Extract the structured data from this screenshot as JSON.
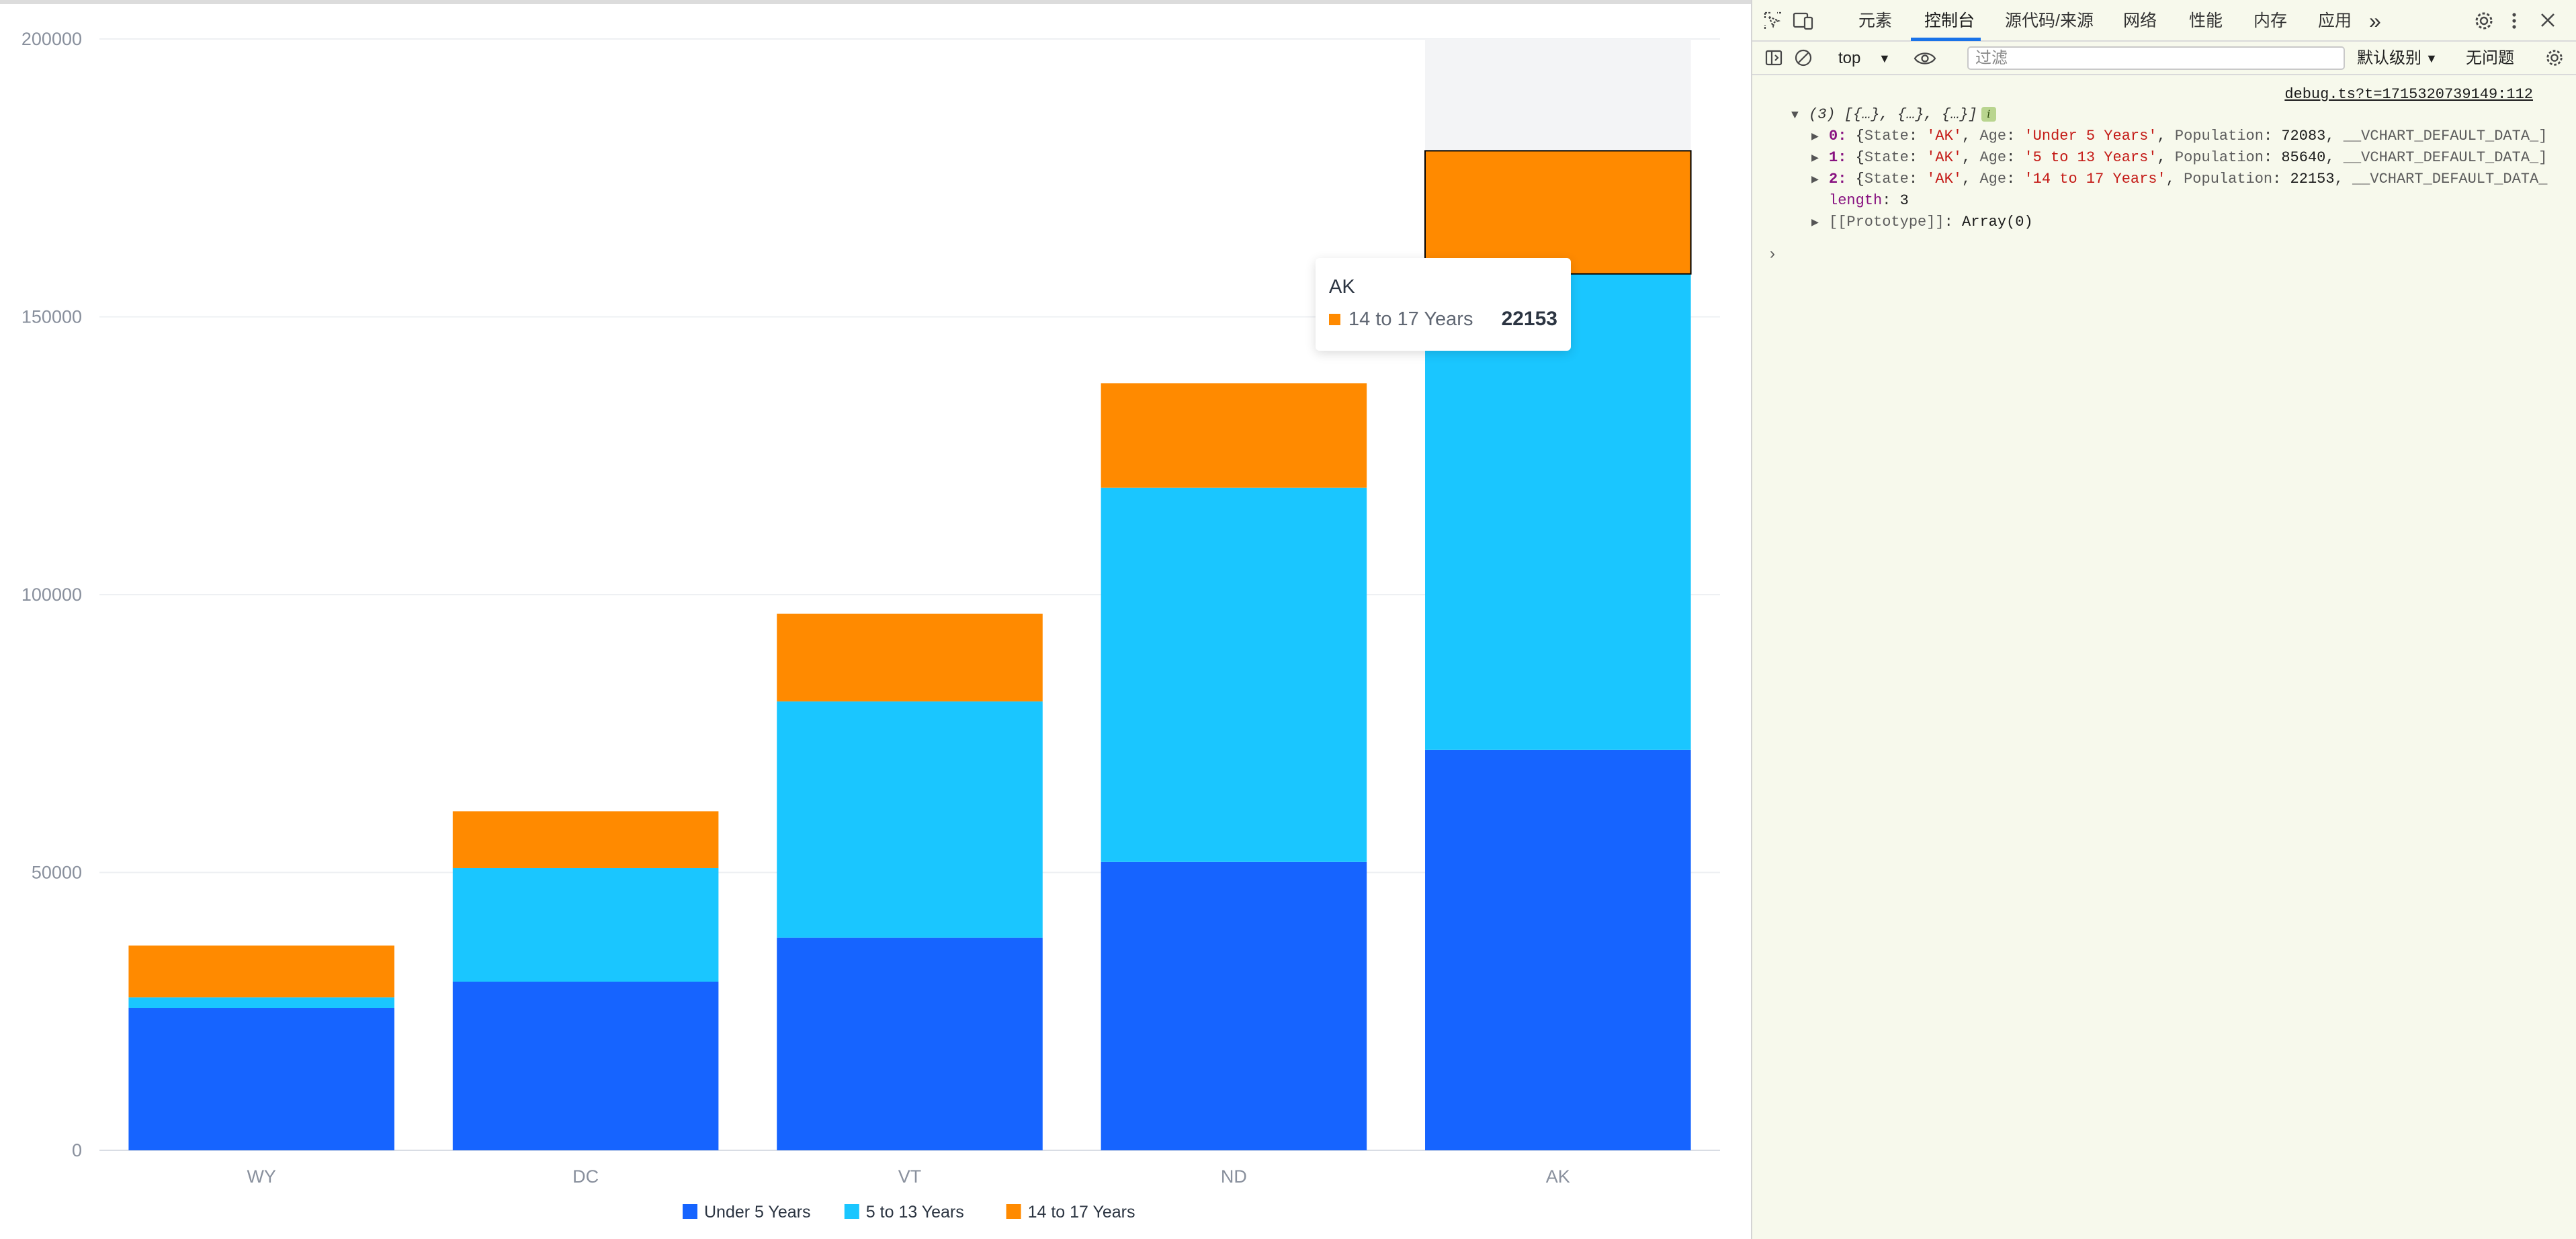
{
  "chart_data": {
    "type": "bar",
    "stacked": true,
    "categories": [
      "WY",
      "DC",
      "VT",
      "ND",
      "AK"
    ],
    "series": [
      {
        "name": "Under 5 Years",
        "color": "#1664ff",
        "values": [
          25635,
          30352,
          38253,
          51896,
          72083
        ]
      },
      {
        "name": "5 to 13 Years",
        "color": "#1ac6ff",
        "values": [
          1890,
          20439,
          42538,
          67358,
          85640
        ]
      },
      {
        "name": "14 to 17 Years",
        "color": "#ff8a00",
        "values": [
          9314,
          10225,
          15757,
          18794,
          22153
        ]
      }
    ],
    "ylim": [
      0,
      200000
    ],
    "yticks": [
      "200000",
      "150000",
      "100000",
      "50000",
      "0"
    ],
    "ytick_values": [
      200000,
      150000,
      100000,
      50000,
      0
    ],
    "legend_position": "bottom-center",
    "grid": true,
    "highlighted_category": "AK",
    "highlighted_series": "14 to 17 Years"
  },
  "tooltip": {
    "title": "AK",
    "label": "14 to 17 Years",
    "value": "22153",
    "color": "#ff8a00"
  },
  "devtools": {
    "tabs": [
      "元素",
      "控制台",
      "源代码/来源",
      "网络",
      "性能",
      "内存",
      "应用"
    ],
    "active_tab": "控制台",
    "more_tabs_glyph": "»",
    "context": "top",
    "filter_placeholder": "过滤",
    "level": "默认级别",
    "issues": "无问题",
    "source_link": "debug.ts?t=1715320739149:112",
    "log_head": "(3) [{…}, {…}, {…}]",
    "info_badge": "i",
    "rows": [
      {
        "index": "0",
        "state": "'AK'",
        "age": "'Under 5 Years'",
        "population": "72083",
        "tail": "__VCHART_DEFAULT_DATA_]"
      },
      {
        "index": "1",
        "state": "'AK'",
        "age": "'5 to 13 Years'",
        "population": "85640",
        "tail": "__VCHART_DEFAULT_DATA_]"
      },
      {
        "index": "2",
        "state": "'AK'",
        "age": "'14 to 17 Years'",
        "population": "22153",
        "tail": "__VCHART_DEFAULT_DATA_"
      }
    ],
    "length_key": "length",
    "length_value": "3",
    "prototype_key": "[[Prototype]]",
    "prototype_value": "Array(0)",
    "prompt": "›"
  }
}
